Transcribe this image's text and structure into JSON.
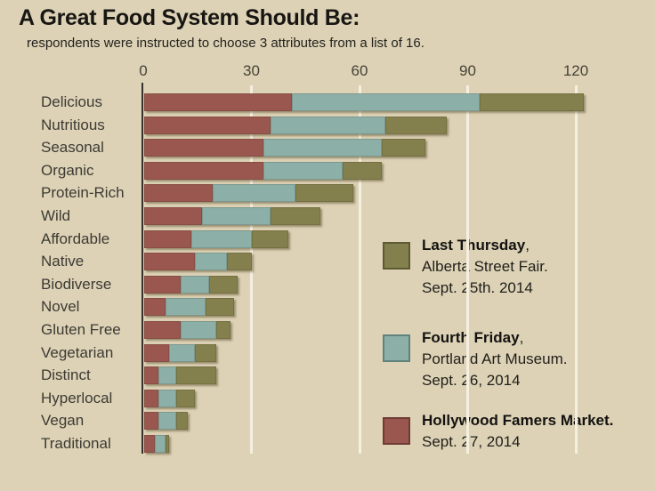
{
  "page": {
    "title": "A Great Food System Should Be:",
    "subtitle": "respondents were instructed to choose 3 attributes from a list of 16."
  },
  "colors": {
    "background": "#ddd2b6",
    "gridline": "#f5efdf",
    "axis_line": "#34322b",
    "hollywood_red": "#9a574f",
    "fourth_friday_teal": "#8cb0a8",
    "last_thursday_olive": "#84804d"
  },
  "chart_data": {
    "type": "bar",
    "orientation": "horizontal",
    "stacked": true,
    "title": "A Great Food System Should Be:",
    "subtitle": "respondents were instructed to choose 3 attributes from a list of 16.",
    "xlabel": "",
    "ylabel": "",
    "xlim": [
      0,
      132
    ],
    "ticks": [
      0,
      30,
      60,
      90,
      120
    ],
    "grid": true,
    "legend_position": "right",
    "categories": [
      "Delicious",
      "Nutritious",
      "Seasonal",
      "Organic",
      "Protein-Rich",
      "Wild",
      "Affordable",
      "Native",
      "Biodiverse",
      "Novel",
      "Gluten Free",
      "Vegetarian",
      "Distinct",
      "Hyperlocal",
      "Vegan",
      "Traditional"
    ],
    "series": [
      {
        "name": "Hollywood Famers Market",
        "color": "#9a574f",
        "values": [
          41,
          35,
          33,
          33,
          19,
          16,
          13,
          14,
          10,
          6,
          10,
          7,
          4,
          4,
          4,
          3
        ]
      },
      {
        "name": "Fourth Friday",
        "color": "#8cb0a8",
        "values": [
          52,
          32,
          33,
          22,
          23,
          19,
          17,
          9,
          8,
          11,
          10,
          7,
          5,
          5,
          5,
          3
        ]
      },
      {
        "name": "Last Thursday",
        "color": "#84804d",
        "values": [
          29,
          17,
          12,
          11,
          16,
          14,
          10,
          7,
          8,
          8,
          4,
          6,
          11,
          5,
          3,
          1
        ]
      }
    ]
  },
  "legend": {
    "entries": [
      {
        "bold": "Last Thursday",
        "rest": ",",
        "lines": [
          "Alberta Street Fair.",
          "Sept. 25th. 2014"
        ],
        "color": "#84804d",
        "border": "#5c5933"
      },
      {
        "bold": "Fourth Friday",
        "rest": ",",
        "lines": [
          "Portland Art Museum.",
          "Sept. 26, 2014"
        ],
        "color": "#8cb0a8",
        "border": "#5f837c"
      },
      {
        "bold": "Hollywood Famers Market.",
        "rest": "",
        "lines": [
          "Sept. 27, 2014"
        ],
        "color": "#9a574f",
        "border": "#6e3b35"
      }
    ]
  }
}
